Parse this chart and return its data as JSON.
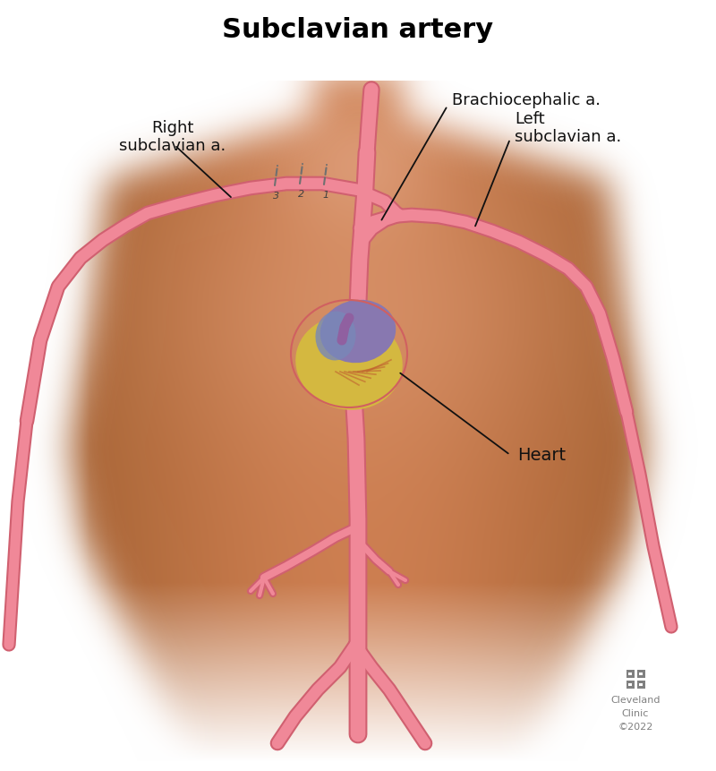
{
  "title": "Subclavian artery",
  "title_fontsize": 22,
  "title_fontweight": "bold",
  "labels": {
    "brachiocephalic": "Brachiocephalic a.",
    "right_subclavian": "Right\nsubclavian a.",
    "left_subclavian": "Left\nsubclavian a.",
    "heart": "Heart"
  },
  "label_fontsize": 13,
  "body_color_main": "#C4784A",
  "body_color_dark": "#9B5A2A",
  "body_color_light": "#D9956A",
  "body_color_highlight": "#E8B090",
  "artery_color": "#F08898",
  "artery_outline": "#D06070",
  "heart_yellow": "#D4B840",
  "heart_red": "#C84040",
  "heart_purple": "#8878B0",
  "heart_blue": "#7888B8",
  "cc_color": "#808080",
  "bg_color": "#FFFFFF",
  "ann_color": "#111111",
  "seg_color": "#707070"
}
